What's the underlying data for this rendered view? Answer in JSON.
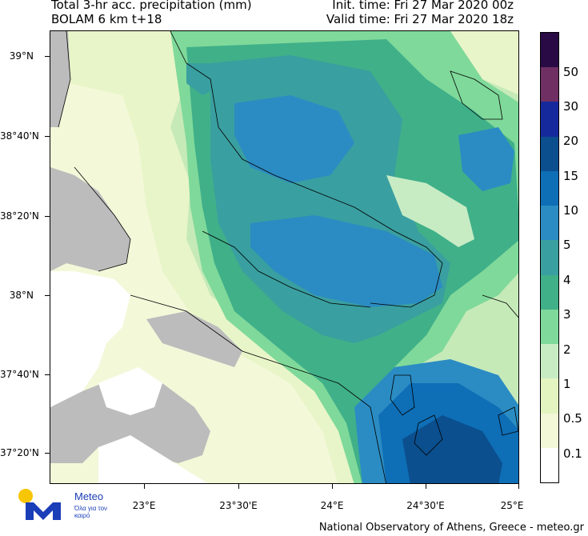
{
  "header": {
    "title_line1": "Total 3-hr acc. precipitation (mm)",
    "title_line2": "BOLAM 6 km t+18",
    "init_time": "Init. time: Fri 27 Mar 2020 00z",
    "valid_time": "Valid time: Fri 27 Mar 2020 18z"
  },
  "axes": {
    "lat_labels": [
      "39°N",
      "38°40'N",
      "38°20'N",
      "38°N",
      "37°40'N",
      "37°20'N"
    ],
    "lon_labels": [
      "23°E",
      "23°30'E",
      "24°E",
      "24°30'E",
      "25°E"
    ]
  },
  "colorbar": {
    "labels": [
      "50",
      "30",
      "20",
      "15",
      "10",
      "5",
      "4",
      "3",
      "2",
      "1",
      "0.5",
      "0.1"
    ],
    "colors": [
      "#2a0a45",
      "#6f2f63",
      "#16299c",
      "#0b4f8e",
      "#0e6eb6",
      "#2b8cc3",
      "#3a9fa0",
      "#40b089",
      "#7fd99a",
      "#c7ecc4",
      "#e4f4c0",
      "#f3f8d9",
      "#ffffff"
    ]
  },
  "colors": {
    "land_gray": "#bcbcbc",
    "logo_yellow": "#f7c600",
    "logo_blue": "#1a3db8"
  },
  "logo": {
    "name": "Meteo",
    "tagline": "Όλα για τον καιρό"
  },
  "footer": {
    "credit": "National Observatory of Athens, Greece - meteo.gr"
  }
}
